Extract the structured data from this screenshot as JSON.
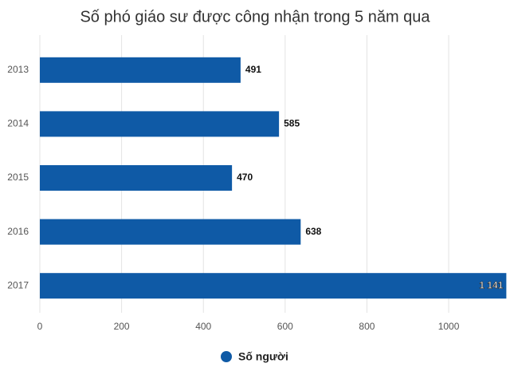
{
  "chart_data": {
    "type": "bar",
    "orientation": "horizontal",
    "title": "Số phó giáo sư được công nhận trong 5 năm qua",
    "categories": [
      "2013",
      "2014",
      "2015",
      "2016",
      "2017"
    ],
    "series": [
      {
        "name": "Số người",
        "color": "#0f5aa6",
        "values": [
          491,
          585,
          470,
          638,
          1141
        ],
        "value_labels": [
          "491",
          "585",
          "470",
          "638",
          "1 141"
        ]
      }
    ],
    "xlim": [
      0,
      1150
    ],
    "xticks": [
      0,
      200,
      400,
      600,
      800,
      1000
    ],
    "grid": true,
    "legend": "bottom"
  }
}
